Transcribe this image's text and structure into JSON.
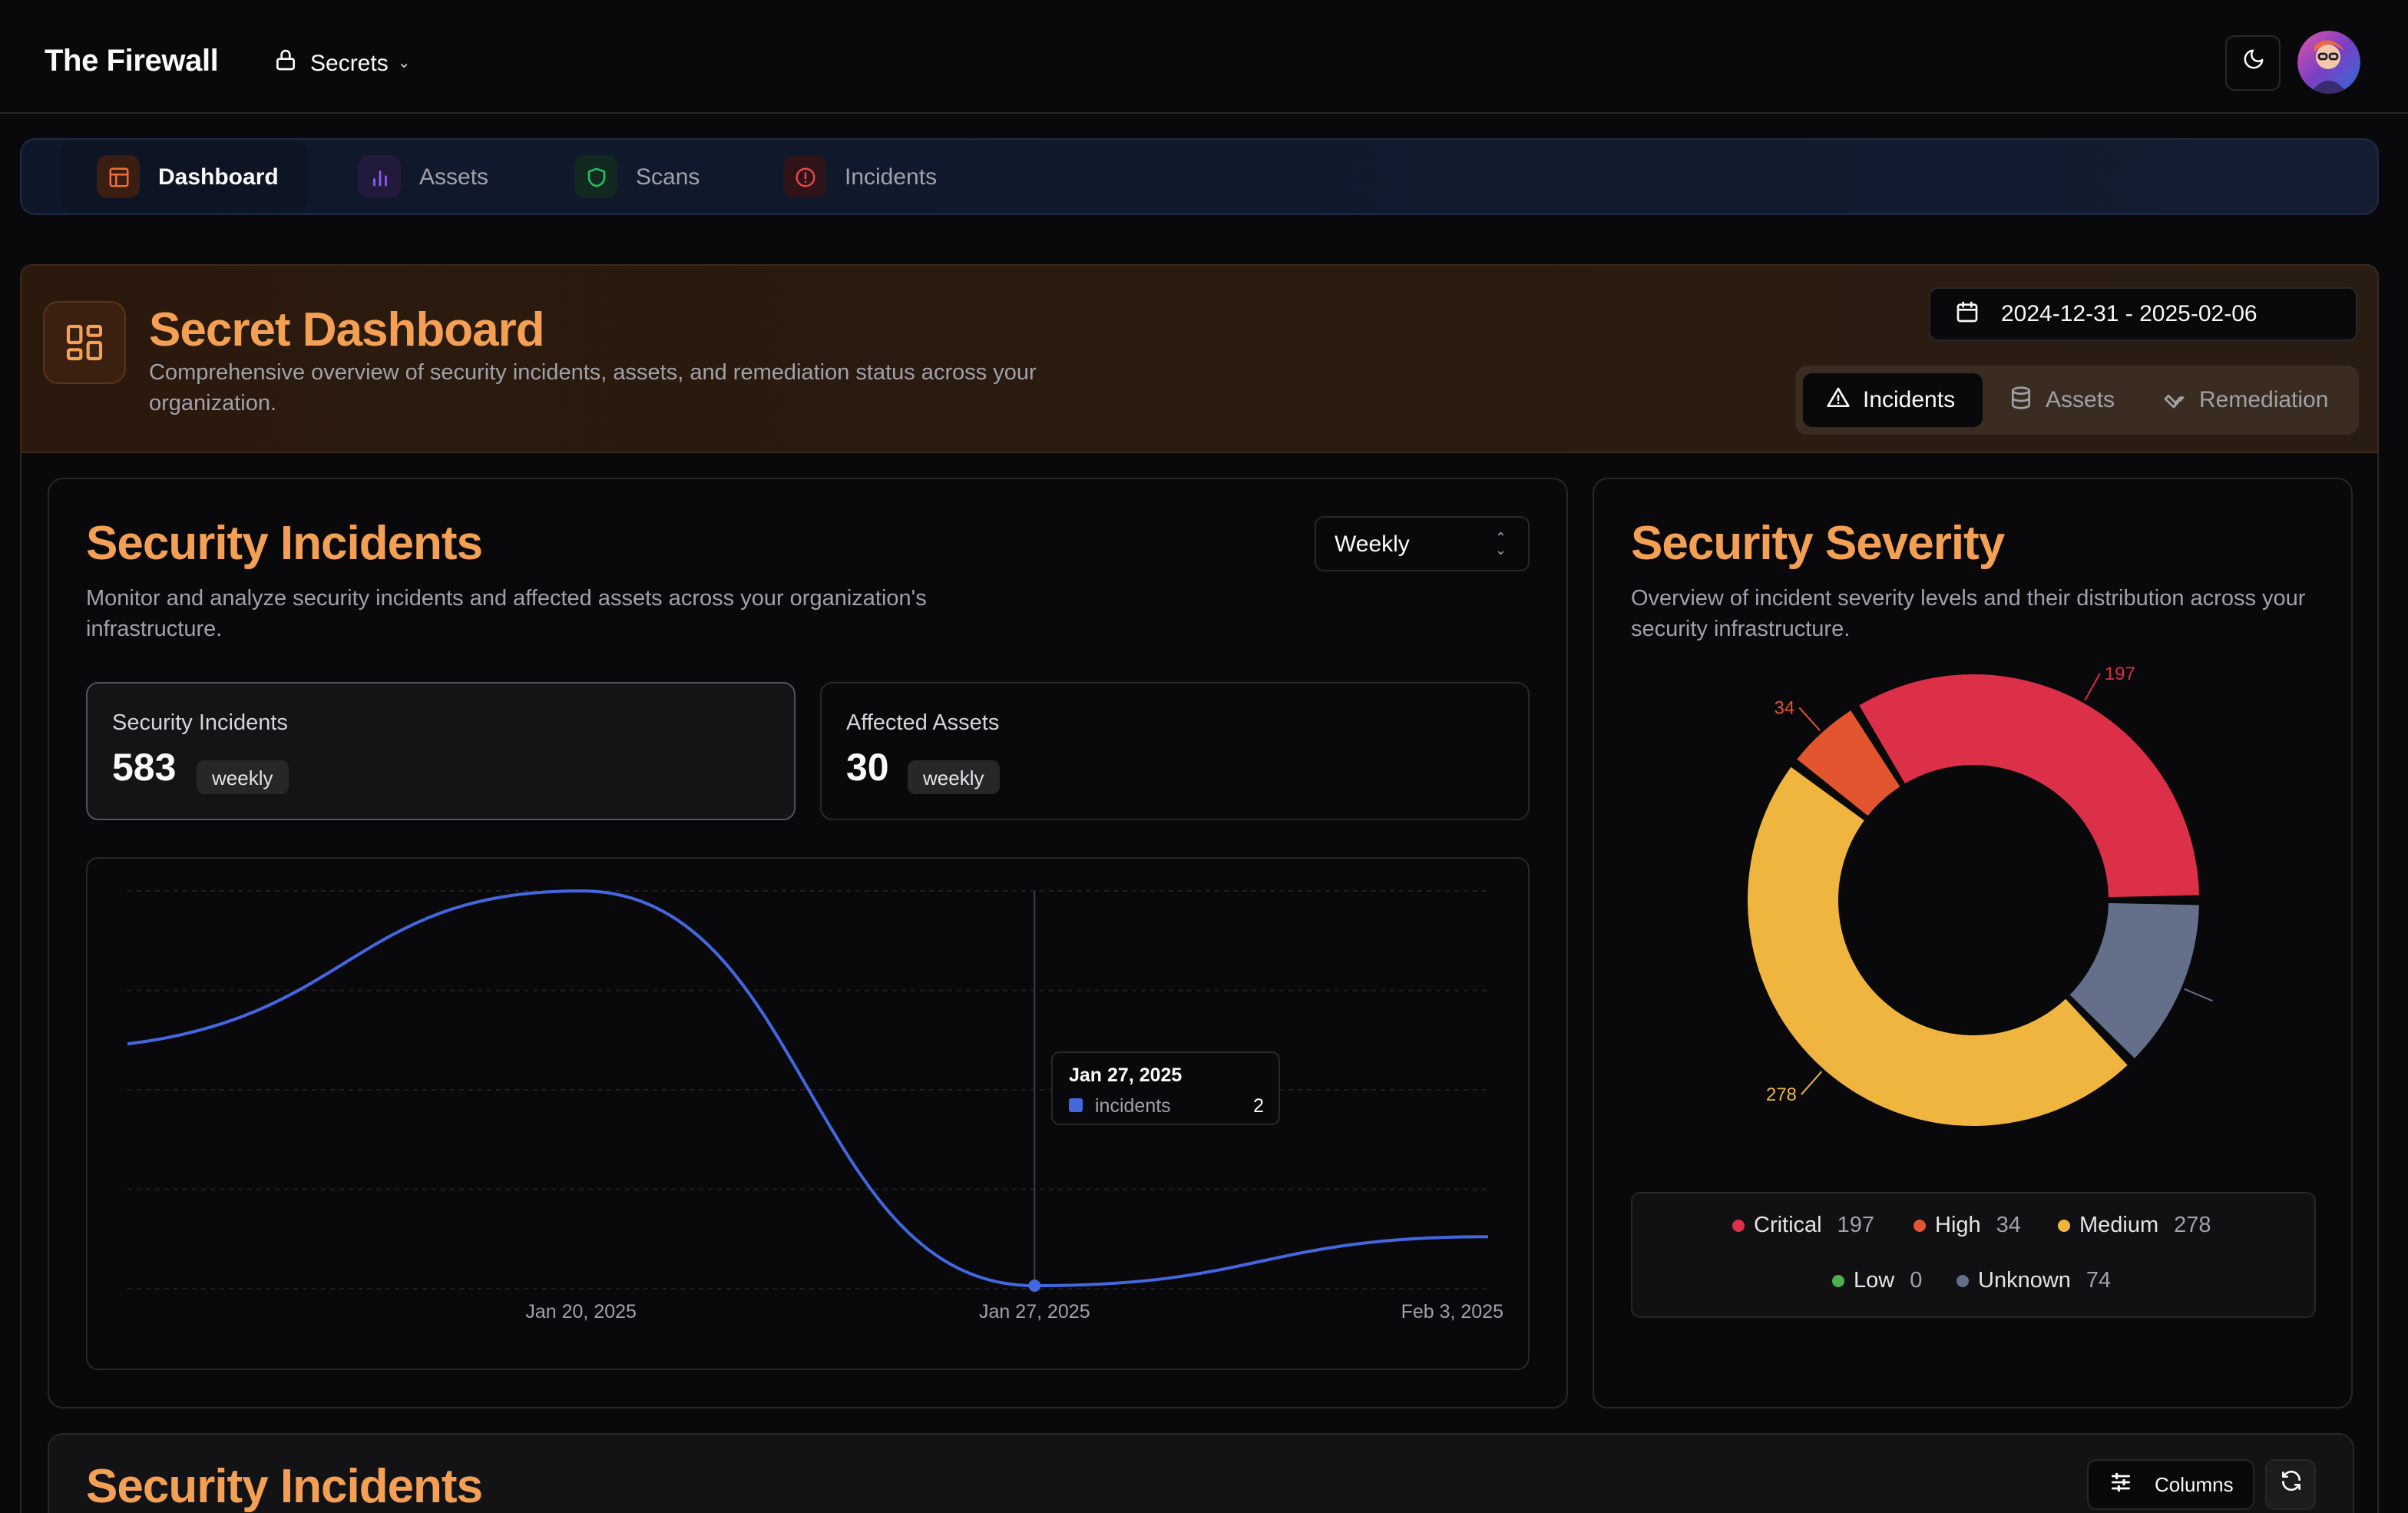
{
  "app": {
    "brand": "The Firewall",
    "project_label": "Secrets"
  },
  "nav": {
    "items": [
      {
        "label": "Dashboard",
        "icon": "layout-icon",
        "active": true,
        "color": "#ef6c3a"
      },
      {
        "label": "Assets",
        "icon": "bar-chart-icon",
        "active": false,
        "color": "#8b5cf6"
      },
      {
        "label": "Scans",
        "icon": "shield-icon",
        "active": false,
        "color": "#22c55e"
      },
      {
        "label": "Incidents",
        "icon": "alert-circle-icon",
        "active": false,
        "color": "#ef4444"
      }
    ]
  },
  "hero": {
    "title": "Secret Dashboard",
    "subtitle": "Comprehensive overview of security incidents, assets, and remediation status across your organization.",
    "date_range": "2024-12-31 - 2025-02-06",
    "tabs": [
      {
        "label": "Incidents",
        "icon": "alert-triangle-icon",
        "active": true
      },
      {
        "label": "Assets",
        "icon": "database-icon",
        "active": false
      },
      {
        "label": "Remediation",
        "icon": "wrench-icon",
        "active": false
      }
    ]
  },
  "incidents_card": {
    "title": "Security Incidents",
    "description": "Monitor and analyze security incidents and affected assets across your organization's infrastructure.",
    "period_select": "Weekly",
    "stats": [
      {
        "label": "Security Incidents",
        "value": "583",
        "badge": "weekly",
        "active": true
      },
      {
        "label": "Affected Assets",
        "value": "30",
        "badge": "weekly",
        "active": false
      }
    ],
    "tooltip": {
      "date": "Jan 27, 2025",
      "series": "incidents",
      "value": "2"
    }
  },
  "severity_card": {
    "title": "Security Severity",
    "description": "Overview of incident severity levels and their distribution across your security infrastructure.",
    "legend": [
      {
        "label": "Critical",
        "value": "197",
        "color": "#dc2f48"
      },
      {
        "label": "High",
        "value": "34",
        "color": "#e2552f"
      },
      {
        "label": "Medium",
        "value": "278",
        "color": "#f0b53f"
      },
      {
        "label": "Low",
        "value": "0",
        "color": "#4caf50"
      },
      {
        "label": "Unknown",
        "value": "74",
        "color": "#64708a"
      }
    ]
  },
  "table_section": {
    "title": "Security Incidents",
    "columns_button": "Columns"
  },
  "chart_data": [
    {
      "type": "line",
      "series": [
        {
          "name": "incidents",
          "color": "#4467e0",
          "x": [
            "2025-01-13",
            "2025-01-20",
            "2025-01-27",
            "2025-02-03"
          ],
          "values": [
            160,
            260,
            2,
            34
          ]
        }
      ],
      "x_tick_labels": [
        "Jan 20, 2025",
        "Jan 27, 2025",
        "Feb 3, 2025"
      ],
      "ylim": [
        0,
        260
      ],
      "grid": true,
      "legend": "none"
    },
    {
      "type": "pie",
      "variant": "donut",
      "categories": [
        "Critical",
        "Unknown",
        "Medium",
        "High",
        "Low"
      ],
      "values": [
        197,
        74,
        278,
        34,
        0
      ],
      "colors": [
        "#dc2f48",
        "#64708a",
        "#f0b53f",
        "#e2552f",
        "#4caf50"
      ],
      "data_labels": [
        "197",
        "",
        "278",
        "34",
        ""
      ]
    }
  ]
}
